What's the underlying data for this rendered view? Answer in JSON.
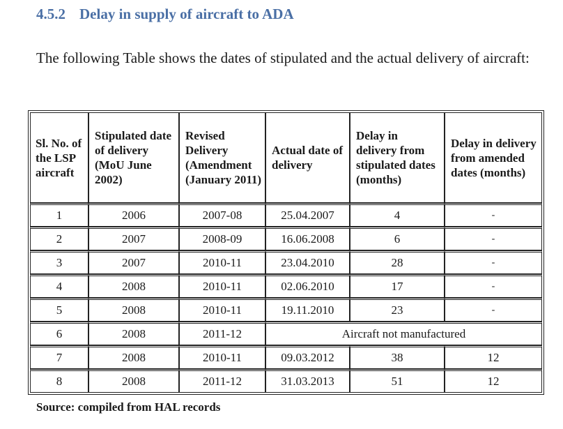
{
  "heading": {
    "number": "4.5.2",
    "title": "Delay in supply of aircraft to ADA"
  },
  "intro": "The following Table shows the dates of stipulated and the actual delivery of aircraft:",
  "table": {
    "headers": [
      "Sl. No. of the LSP aircraft",
      "Stipulated date of delivery (MoU June 2002)",
      "Revised Delivery (Amendment (January 2011)",
      "Actual date of delivery",
      "Delay in delivery from stipulated dates (months)",
      "Delay in delivery from amended dates (months)"
    ],
    "rows": [
      [
        "1",
        "2006",
        "2007-08",
        "25.04.2007",
        "4",
        "-"
      ],
      [
        "2",
        "2007",
        "2008-09",
        "16.06.2008",
        "6",
        "-"
      ],
      [
        "3",
        "2007",
        "2010-11",
        "23.04.2010",
        "28",
        "-"
      ],
      [
        "4",
        "2008",
        "2010-11",
        "02.06.2010",
        "17",
        "-"
      ],
      [
        "5",
        "2008",
        "2010-11",
        "19.11.2010",
        "23",
        "-"
      ],
      [
        "6",
        "2008",
        "2011-12",
        "Aircraft not manufactured"
      ],
      [
        "7",
        "2008",
        "2010-11",
        "09.03.2012",
        "38",
        "12"
      ],
      [
        "8",
        "2008",
        "2011-12",
        "31.03.2013",
        "51",
        "12"
      ]
    ]
  },
  "source": "Source: compiled from HAL records"
}
